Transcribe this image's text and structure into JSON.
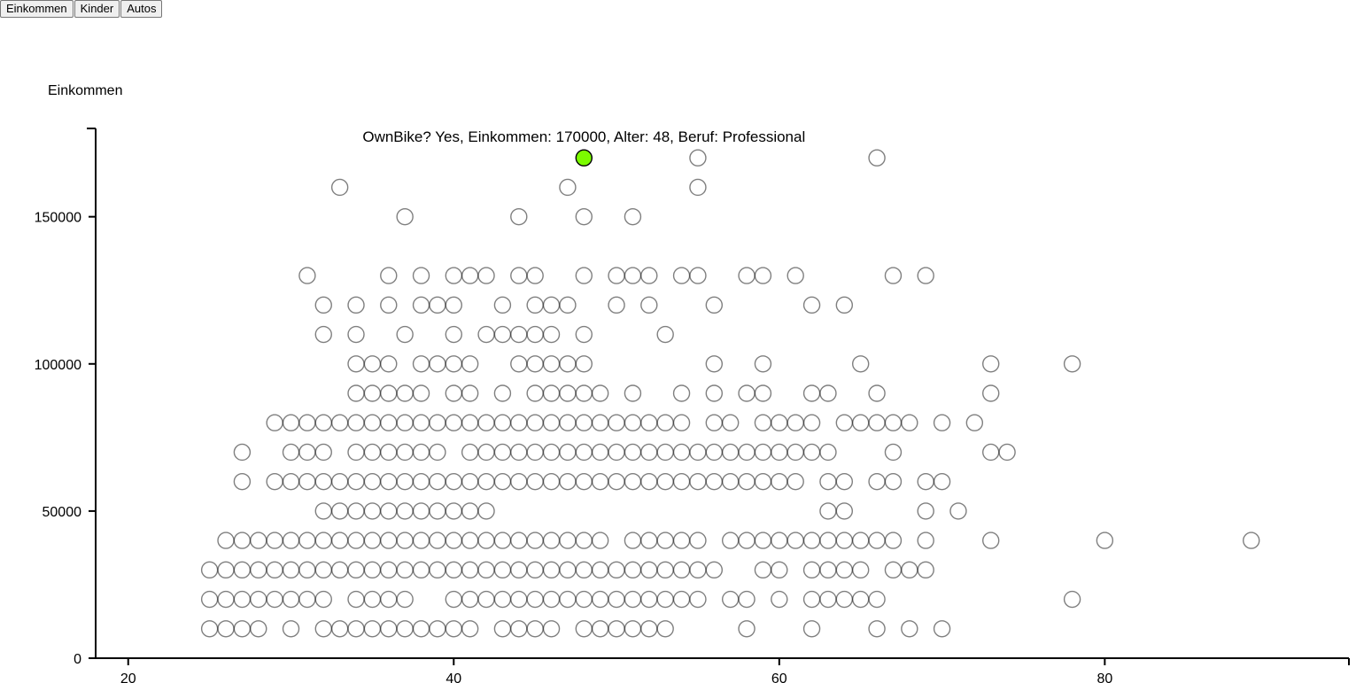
{
  "toolbar": {
    "buttons": [
      "Einkommen",
      "Kinder",
      "Autos"
    ]
  },
  "tooltip": {
    "text": "OwnBike? Yes, Einkommen: 170000, Alter: 48, Beruf: Professional"
  },
  "colors": {
    "highlight": "#7cfc00",
    "marker_stroke": "#000000"
  },
  "chart_data": {
    "type": "scatter",
    "title": "",
    "xlabel": "",
    "ylabel": "Einkommen",
    "xlim": [
      18,
      95
    ],
    "ylim": [
      0,
      180000
    ],
    "x_ticks": [
      20,
      40,
      60,
      80
    ],
    "y_ticks": [
      0,
      50000,
      100000,
      150000
    ],
    "x_tick_labels": [
      "20",
      "40",
      "60",
      "80"
    ],
    "y_tick_labels": [
      "0",
      "50000",
      "100000",
      "150000"
    ],
    "grid": false,
    "highlight": {
      "x": 48,
      "y": 170000
    },
    "rows": [
      {
        "y": 170000,
        "x": [
          48,
          55,
          66
        ]
      },
      {
        "y": 160000,
        "x": [
          33,
          47,
          55
        ]
      },
      {
        "y": 150000,
        "x": [
          37,
          44,
          48,
          51
        ]
      },
      {
        "y": 130000,
        "x": [
          31,
          36,
          38,
          40,
          41,
          42,
          44,
          45,
          48,
          50,
          51,
          52,
          54,
          55,
          58,
          59,
          61,
          67,
          69
        ]
      },
      {
        "y": 120000,
        "x": [
          32,
          34,
          36,
          38,
          39,
          40,
          43,
          45,
          46,
          47,
          50,
          52,
          56,
          62,
          64
        ]
      },
      {
        "y": 110000,
        "x": [
          32,
          34,
          37,
          40,
          42,
          43,
          44,
          45,
          46,
          48,
          53
        ]
      },
      {
        "y": 100000,
        "x": [
          34,
          35,
          36,
          38,
          39,
          40,
          41,
          44,
          45,
          46,
          47,
          48,
          56,
          59,
          65,
          73,
          78
        ]
      },
      {
        "y": 90000,
        "x": [
          34,
          35,
          36,
          37,
          38,
          40,
          41,
          43,
          45,
          46,
          47,
          48,
          49,
          51,
          54,
          56,
          58,
          59,
          62,
          63,
          66,
          73
        ]
      },
      {
        "y": 80000,
        "x": [
          29,
          30,
          31,
          32,
          33,
          34,
          35,
          36,
          37,
          38,
          39,
          40,
          41,
          42,
          43,
          44,
          45,
          46,
          47,
          48,
          49,
          50,
          51,
          52,
          53,
          54,
          56,
          57,
          59,
          60,
          61,
          62,
          64,
          65,
          66,
          67,
          68,
          70,
          72
        ]
      },
      {
        "y": 70000,
        "x": [
          27,
          30,
          31,
          32,
          34,
          35,
          36,
          37,
          38,
          39,
          41,
          42,
          43,
          44,
          45,
          46,
          47,
          48,
          49,
          50,
          51,
          52,
          53,
          54,
          55,
          56,
          57,
          58,
          59,
          60,
          61,
          62,
          63,
          67,
          73,
          74
        ]
      },
      {
        "y": 60000,
        "x": [
          27,
          29,
          30,
          31,
          32,
          33,
          34,
          35,
          36,
          37,
          38,
          39,
          40,
          41,
          42,
          43,
          44,
          45,
          46,
          47,
          48,
          49,
          50,
          51,
          52,
          53,
          54,
          55,
          56,
          57,
          58,
          59,
          60,
          61,
          63,
          64,
          66,
          67,
          69,
          70
        ]
      },
      {
        "y": 50000,
        "x": [
          32,
          33,
          34,
          35,
          36,
          37,
          38,
          39,
          40,
          41,
          42,
          63,
          64,
          69,
          71
        ]
      },
      {
        "y": 40000,
        "x": [
          26,
          27,
          28,
          29,
          30,
          31,
          32,
          33,
          34,
          35,
          36,
          37,
          38,
          39,
          40,
          41,
          42,
          43,
          44,
          45,
          46,
          47,
          48,
          49,
          51,
          52,
          53,
          54,
          55,
          57,
          58,
          59,
          60,
          61,
          62,
          63,
          64,
          65,
          66,
          67,
          69,
          73,
          80,
          89
        ]
      },
      {
        "y": 30000,
        "x": [
          25,
          26,
          27,
          28,
          29,
          30,
          31,
          32,
          33,
          34,
          35,
          36,
          37,
          38,
          39,
          40,
          41,
          42,
          43,
          44,
          45,
          46,
          47,
          48,
          49,
          50,
          51,
          52,
          53,
          54,
          55,
          56,
          59,
          60,
          62,
          63,
          64,
          65,
          67,
          68,
          69
        ]
      },
      {
        "y": 20000,
        "x": [
          25,
          26,
          27,
          28,
          29,
          30,
          31,
          32,
          34,
          35,
          36,
          37,
          40,
          41,
          42,
          43,
          44,
          45,
          46,
          47,
          48,
          49,
          50,
          51,
          52,
          53,
          54,
          55,
          57,
          58,
          60,
          62,
          63,
          64,
          65,
          66,
          78
        ]
      },
      {
        "y": 10000,
        "x": [
          25,
          26,
          27,
          28,
          30,
          32,
          33,
          34,
          35,
          36,
          37,
          38,
          39,
          40,
          41,
          43,
          44,
          45,
          46,
          48,
          49,
          50,
          51,
          52,
          53,
          58,
          62,
          66,
          68,
          70
        ]
      }
    ]
  }
}
